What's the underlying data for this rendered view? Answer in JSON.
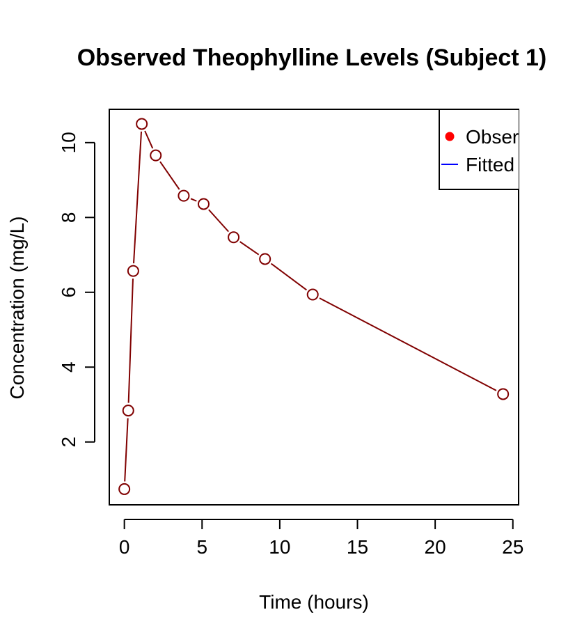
{
  "chart_data": {
    "type": "line",
    "title": "Observed Theophylline Levels (Subject 1)",
    "xlabel": "Time (hours)",
    "ylabel": "Concentration (mg/L)",
    "xlim": [
      -0.97,
      25.37
    ],
    "ylim": [
      0.32,
      10.89
    ],
    "x_ticks": [
      0,
      5,
      10,
      15,
      20,
      25
    ],
    "x_tick_labels": [
      "0",
      "5",
      "10",
      "15",
      "20",
      "25"
    ],
    "y_ticks": [
      2,
      4,
      6,
      8,
      10
    ],
    "y_tick_labels": [
      "2",
      "4",
      "6",
      "8",
      "10"
    ],
    "grid": false,
    "legend_position": "top-right",
    "legend": [
      {
        "label": "Observed",
        "symbol": "point",
        "color": "#ff0000"
      },
      {
        "label": "Fitted",
        "symbol": "line",
        "color": "#0000ff"
      }
    ],
    "series": [
      {
        "line_color": "#800000",
        "marker": "open-circle",
        "x": [
          0,
          0.25,
          0.57,
          1.12,
          2.02,
          3.82,
          5.1,
          7.03,
          9.05,
          12.12,
          24.37
        ],
        "y": [
          0.74,
          2.84,
          6.57,
          10.5,
          9.66,
          8.58,
          8.36,
          7.47,
          6.89,
          5.94,
          3.28
        ]
      }
    ]
  }
}
